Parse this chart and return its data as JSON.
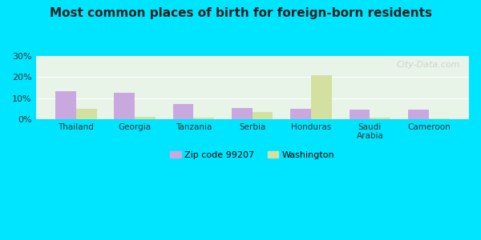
{
  "title": "Most common places of birth for foreign-born residents",
  "categories": [
    "Thailand",
    "Georgia",
    "Tanzania",
    "Serbia",
    "Honduras",
    "Saudi\nArabia",
    "Cameroon"
  ],
  "zip_values": [
    13.2,
    12.5,
    7.0,
    5.2,
    5.0,
    4.5,
    4.5
  ],
  "wa_values": [
    5.0,
    1.0,
    0.5,
    3.5,
    21.0,
    0.5,
    0.2
  ],
  "zip_color": "#c9a8e0",
  "wa_color": "#d4e0a0",
  "background_top": "#e8f4e8",
  "background_bottom": "#f0f8e8",
  "ylim": [
    0,
    30
  ],
  "yticks": [
    0,
    10,
    20,
    30
  ],
  "ytick_labels": [
    "0%",
    "10%",
    "20%",
    "30%"
  ],
  "legend_zip_label": "Zip code 99207",
  "legend_wa_label": "Washington",
  "bar_width": 0.35,
  "outer_bg": "#00e5ff",
  "watermark": "City-Data.com"
}
